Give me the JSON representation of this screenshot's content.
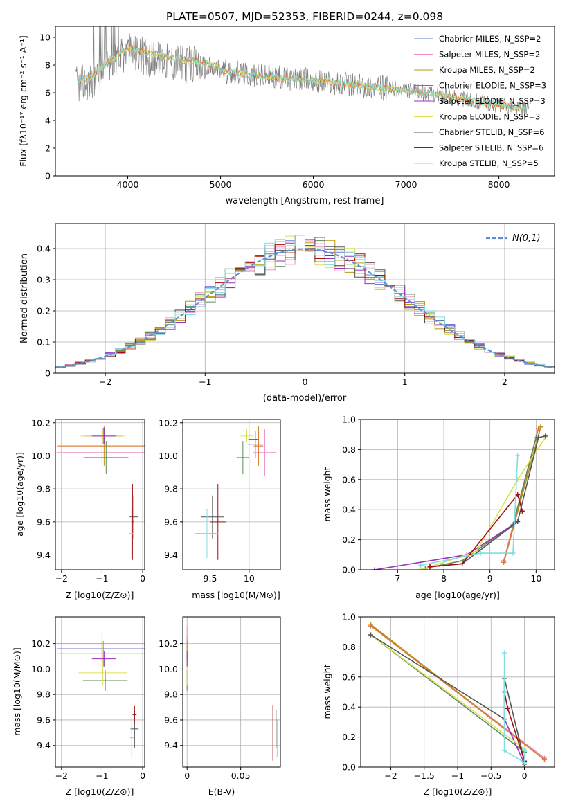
{
  "figure": {
    "title": "PLATE=0507, MJD=52353, FIBERID=0244, z=0.098"
  },
  "colors": {
    "Chabrier MILES": "#6a7bd0",
    "Salpeter MILES": "#ee8fc0",
    "Kroupa MILES": "#b8960e",
    "Chabrier ELODIE": "#5e8a5a",
    "Salpeter ELODIE": "#9a2fc0",
    "Kroupa ELODIE": "#d8e050",
    "Chabrier STELIB": "#545454",
    "Salpeter STELIB": "#a01010",
    "Kroupa STELIB": "#80dde0",
    "orange": "#e07a3a",
    "data": "#7f7f7f",
    "normal_curve": "#5b8fd9"
  },
  "chart_data": [
    {
      "id": "spectrum",
      "type": "line",
      "title": "PLATE=0507, MJD=52353, FIBERID=0244, z=0.098",
      "xlabel": "wavelength [Angstrom, rest frame]",
      "ylabel": "Flux [fλ10⁻¹⁷ erg cm⁻² s⁻¹ A⁻¹]",
      "xlim": [
        3220,
        8600
      ],
      "ylim": [
        0,
        10.8
      ],
      "xticks": [
        4000,
        5000,
        6000,
        7000,
        8000
      ],
      "yticks": [
        0,
        2,
        4,
        6,
        8,
        10
      ],
      "grid": false,
      "legend_position": "top-right",
      "continuum_x": [
        3450,
        3600,
        3800,
        4000,
        4200,
        4400,
        4600,
        4800,
        5000,
        5300,
        5600,
        6000,
        6400,
        6800,
        7200,
        7600,
        8000,
        8300
      ],
      "continuum_y": [
        6.6,
        6.8,
        8.0,
        9.0,
        8.6,
        8.3,
        8.1,
        7.9,
        7.6,
        7.3,
        7.1,
        6.9,
        6.6,
        6.3,
        6.0,
        5.6,
        5.1,
        4.8
      ],
      "legend": [
        {
          "label": "Chabrier MILES, N_SSP=2",
          "key": "Chabrier MILES"
        },
        {
          "label": "Salpeter MILES, N_SSP=2",
          "key": "Salpeter MILES"
        },
        {
          "label": "Kroupa MILES, N_SSP=2",
          "key": "Kroupa MILES"
        },
        {
          "label": "Chabrier ELODIE, N_SSP=3",
          "key": "Chabrier ELODIE"
        },
        {
          "label": "Salpeter ELODIE, N_SSP=3",
          "key": "Salpeter ELODIE"
        },
        {
          "label": "Kroupa ELODIE, N_SSP=3",
          "key": "Kroupa ELODIE"
        },
        {
          "label": "Chabrier STELIB, N_SSP=6",
          "key": "Chabrier STELIB"
        },
        {
          "label": "Salpeter STELIB, N_SSP=6",
          "key": "Salpeter STELIB"
        },
        {
          "label": "Kroupa STELIB, N_SSP=5",
          "key": "Kroupa STELIB"
        }
      ]
    },
    {
      "id": "residuals",
      "type": "line",
      "xlabel": "(data-model)/error",
      "ylabel": "Normed distribution",
      "xlim": [
        -2.5,
        2.5
      ],
      "ylim": [
        0,
        0.48
      ],
      "xticks": [
        -2,
        -1,
        0,
        1,
        2
      ],
      "yticks": [
        0.0,
        0.1,
        0.2,
        0.3,
        0.4
      ],
      "grid": true,
      "legend_position": "top-right",
      "legend_label": "N(0,1)",
      "bin_width": 0.1,
      "series": [
        {
          "key": "Chabrier MILES"
        },
        {
          "key": "Salpeter MILES"
        },
        {
          "key": "Kroupa MILES"
        },
        {
          "key": "Chabrier ELODIE"
        },
        {
          "key": "Salpeter ELODIE"
        },
        {
          "key": "Kroupa ELODIE"
        },
        {
          "key": "Chabrier STELIB"
        },
        {
          "key": "Salpeter STELIB"
        },
        {
          "key": "Kroupa STELIB"
        }
      ]
    },
    {
      "id": "age_vs_Z",
      "type": "scatter",
      "xlabel": "Z [log10(Z/Z⊙)]",
      "ylabel": "age  [log10(age/yr)]",
      "xlim": [
        -2.15,
        0.05
      ],
      "ylim": [
        9.31,
        10.22
      ],
      "xticks": [
        -2,
        -1,
        0
      ],
      "yticks": [
        9.4,
        9.6,
        9.8,
        10.0,
        10.2
      ],
      "grid": true,
      "points": [
        {
          "key": "Chabrier MILES",
          "x": -0.97,
          "y": 10.12,
          "xerr": 0.45,
          "yerr": 0.05
        },
        {
          "key": "Salpeter MILES",
          "x": -1.0,
          "y": 10.02,
          "xerr": 1.1,
          "yerr": 0.15
        },
        {
          "key": "Kroupa MILES",
          "x": -0.95,
          "y": 10.06,
          "xerr": 1.1,
          "yerr": 0.12
        },
        {
          "key": "orange",
          "x": -1.0,
          "y": 10.06,
          "xerr": 1.1,
          "yerr": 0.1
        },
        {
          "key": "Chabrier ELODIE",
          "x": -0.9,
          "y": 9.99,
          "xerr": 0.55,
          "yerr": 0.1
        },
        {
          "key": "Kroupa ELODIE",
          "x": -0.98,
          "y": 10.12,
          "xerr": 0.55,
          "yerr": 0.04
        },
        {
          "key": "Salpeter ELODIE",
          "x": -0.95,
          "y": 10.12,
          "xerr": 0.3,
          "yerr": 0.05
        },
        {
          "key": "Chabrier STELIB",
          "x": -0.22,
          "y": 9.63,
          "xerr": 0.1,
          "yerr": 0.13
        },
        {
          "key": "Salpeter STELIB",
          "x": -0.25,
          "y": 9.6,
          "xerr": 0.03,
          "yerr": 0.23
        },
        {
          "key": "Kroupa STELIB",
          "x": -0.27,
          "y": 9.53,
          "xerr": 0.05,
          "yerr": 0.15
        }
      ]
    },
    {
      "id": "age_vs_mass",
      "type": "scatter",
      "xlabel": "mass [log10(M/M⊙)]",
      "xlim": [
        9.15,
        10.4
      ],
      "ylim": [
        9.31,
        10.22
      ],
      "xticks": [
        9.5,
        10.0
      ],
      "yticks": [
        9.4,
        9.6,
        9.8,
        10.0,
        10.2
      ],
      "grid": true,
      "points": [
        {
          "key": "Chabrier MILES",
          "x": 10.08,
          "y": 10.07,
          "xerr": 0.1,
          "yerr": 0.08
        },
        {
          "key": "Salpeter MILES",
          "x": 10.2,
          "y": 10.02,
          "xerr": 0.15,
          "yerr": 0.14
        },
        {
          "key": "Kroupa MILES",
          "x": 10.12,
          "y": 10.06,
          "xerr": 0.06,
          "yerr": 0.12
        },
        {
          "key": "orange",
          "x": 10.12,
          "y": 10.06,
          "xerr": 0.06,
          "yerr": 0.1
        },
        {
          "key": "Chabrier ELODIE",
          "x": 9.92,
          "y": 9.99,
          "xerr": 0.08,
          "yerr": 0.1
        },
        {
          "key": "Kroupa ELODIE",
          "x": 9.97,
          "y": 10.12,
          "xerr": 0.08,
          "yerr": 0.04
        },
        {
          "key": "Salpeter ELODIE",
          "x": 10.05,
          "y": 10.1,
          "xerr": 0.06,
          "yerr": 0.06
        },
        {
          "key": "Chabrier STELIB",
          "x": 9.53,
          "y": 9.63,
          "xerr": 0.15,
          "yerr": 0.13
        },
        {
          "key": "Salpeter STELIB",
          "x": 9.6,
          "y": 9.6,
          "xerr": 0.1,
          "yerr": 0.23
        },
        {
          "key": "Kroupa STELIB",
          "x": 9.46,
          "y": 9.53,
          "xerr": 0.15,
          "yerr": 0.15
        }
      ]
    },
    {
      "id": "mass_weight_vs_age",
      "type": "line",
      "xlabel": "age  [log10(age/yr)]",
      "ylabel": "mass weight",
      "xlim": [
        6.2,
        10.4
      ],
      "ylim": [
        0,
        1.0
      ],
      "xticks": [
        7,
        8,
        9,
        10
      ],
      "yticks": [
        0.0,
        0.2,
        0.4,
        0.6,
        0.8,
        1.0
      ],
      "grid": true,
      "series": [
        {
          "key": "Chabrier MILES",
          "x": [
            9.3,
            10.1
          ],
          "y": [
            0.05,
            0.95
          ]
        },
        {
          "key": "Salpeter MILES",
          "x": [
            9.3,
            10.05
          ],
          "y": [
            0.06,
            0.94
          ]
        },
        {
          "key": "Kroupa MILES",
          "x": [
            9.3,
            10.1
          ],
          "y": [
            0.05,
            0.95
          ]
        },
        {
          "key": "orange",
          "x": [
            9.3,
            10.05
          ],
          "y": [
            0.05,
            0.94
          ]
        },
        {
          "key": "Chabrier ELODIE",
          "x": [
            7.6,
            8.4,
            9.5,
            10.0
          ],
          "y": [
            0.01,
            0.06,
            0.3,
            0.88
          ]
        },
        {
          "key": "Salpeter ELODIE",
          "x": [
            6.5,
            8.5,
            9.6
          ],
          "y": [
            0.0,
            0.1,
            0.32
          ]
        },
        {
          "key": "Kroupa ELODIE",
          "x": [
            7.5,
            8.7,
            9.6,
            10.2
          ],
          "y": [
            0.0,
            0.12,
            0.6,
            0.88
          ]
        },
        {
          "key": "Chabrier STELIB",
          "x": [
            7.7,
            8.4,
            9.6,
            10.05,
            10.2
          ],
          "y": [
            0.02,
            0.04,
            0.32,
            0.88,
            0.89
          ]
        },
        {
          "key": "Salpeter STELIB",
          "x": [
            7.7,
            8.4,
            9.6,
            9.7
          ],
          "y": [
            0.02,
            0.04,
            0.5,
            0.39
          ]
        },
        {
          "key": "Kroupa STELIB",
          "x": [
            7.5,
            8.8,
            9.5,
            9.6
          ],
          "y": [
            0.03,
            0.11,
            0.11,
            0.76
          ]
        }
      ]
    },
    {
      "id": "mass_vs_Z",
      "type": "scatter",
      "xlabel": "Z [log10(Z/Z⊙)]",
      "ylabel": "mass [log10(M/M⊙)]",
      "xlim": [
        -2.15,
        0.05
      ],
      "ylim": [
        9.23,
        10.41
      ],
      "xticks": [
        -2,
        -1,
        0
      ],
      "yticks": [
        9.4,
        9.6,
        9.8,
        10.0,
        10.2
      ],
      "grid": true,
      "points": [
        {
          "key": "Chabrier MILES",
          "x": -1.0,
          "y": 10.16,
          "xerr": 1.1,
          "yerr": 0.1
        },
        {
          "key": "Salpeter MILES",
          "x": -1.0,
          "y": 10.2,
          "xerr": 1.1,
          "yerr": 0.14
        },
        {
          "key": "Kroupa MILES",
          "x": -0.97,
          "y": 10.12,
          "xerr": 1.1,
          "yerr": 0.1
        },
        {
          "key": "orange",
          "x": -1.0,
          "y": 10.12,
          "xerr": 1.1,
          "yerr": 0.1
        },
        {
          "key": "Chabrier ELODIE",
          "x": -0.92,
          "y": 9.91,
          "xerr": 0.55,
          "yerr": 0.08
        },
        {
          "key": "Kroupa ELODIE",
          "x": -0.98,
          "y": 9.97,
          "xerr": 0.6,
          "yerr": 0.1
        },
        {
          "key": "Salpeter ELODIE",
          "x": -0.95,
          "y": 10.08,
          "xerr": 0.3,
          "yerr": 0.06
        },
        {
          "key": "Chabrier STELIB",
          "x": -0.2,
          "y": 9.53,
          "xerr": 0.1,
          "yerr": 0.15
        },
        {
          "key": "Salpeter STELIB",
          "x": -0.2,
          "y": 9.64,
          "xerr": 0.05,
          "yerr": 0.07
        },
        {
          "key": "Kroupa STELIB",
          "x": -0.27,
          "y": 9.46,
          "xerr": 0.05,
          "yerr": 0.15
        }
      ]
    },
    {
      "id": "mass_vs_ebv",
      "type": "scatter",
      "xlabel": "E(B-V)",
      "xlim": [
        -0.004,
        0.087
      ],
      "ylim": [
        9.23,
        10.41
      ],
      "xticks": [
        0.0,
        0.05
      ],
      "yticks": [
        9.4,
        9.6,
        9.8,
        10.0,
        10.2
      ],
      "grid": true,
      "points": [
        {
          "key": "Chabrier MILES",
          "x": 0.0,
          "y": 10.16,
          "xerr": 0,
          "yerr": 0.1
        },
        {
          "key": "Salpeter MILES",
          "x": 0.0,
          "y": 10.2,
          "xerr": 0,
          "yerr": 0.14
        },
        {
          "key": "Kroupa MILES",
          "x": 0.0,
          "y": 10.12,
          "xerr": 0,
          "yerr": 0.1
        },
        {
          "key": "Chabrier ELODIE",
          "x": 0.0,
          "y": 9.91,
          "xerr": 0,
          "yerr": 0.08
        },
        {
          "key": "Kroupa ELODIE",
          "x": 0.0,
          "y": 9.97,
          "xerr": 0,
          "yerr": 0.1
        },
        {
          "key": "Salpeter ELODIE",
          "x": 0.0,
          "y": 10.08,
          "xerr": 0,
          "yerr": 0.06
        },
        {
          "key": "Chabrier STELIB",
          "x": 0.083,
          "y": 9.53,
          "xerr": 0,
          "yerr": 0.15
        },
        {
          "key": "Salpeter STELIB",
          "x": 0.08,
          "y": 9.5,
          "xerr": 0,
          "yerr": 0.22
        },
        {
          "key": "Kroupa STELIB",
          "x": 0.084,
          "y": 9.46,
          "xerr": 0,
          "yerr": 0.15
        }
      ]
    },
    {
      "id": "mass_weight_vs_Z",
      "type": "line",
      "xlabel": "Z [log10(Z/Z⊙)]",
      "ylabel": "mass weight",
      "xlim": [
        -2.45,
        0.45
      ],
      "ylim": [
        0,
        1.0
      ],
      "xticks": [
        -2.0,
        -1.5,
        -1.0,
        -0.5,
        0.0
      ],
      "yticks": [
        0.0,
        0.2,
        0.4,
        0.6,
        0.8,
        1.0
      ],
      "grid": true,
      "series": [
        {
          "key": "Chabrier MILES",
          "x": [
            -2.3,
            0.3
          ],
          "y": [
            0.95,
            0.05
          ]
        },
        {
          "key": "Salpeter MILES",
          "x": [
            -2.3,
            0.3
          ],
          "y": [
            0.94,
            0.06
          ]
        },
        {
          "key": "Kroupa MILES",
          "x": [
            -2.3,
            0.3
          ],
          "y": [
            0.95,
            0.05
          ]
        },
        {
          "key": "orange",
          "x": [
            -2.3,
            0.3
          ],
          "y": [
            0.94,
            0.05
          ]
        },
        {
          "key": "Chabrier ELODIE",
          "x": [
            -2.3,
            0.0
          ],
          "y": [
            0.88,
            0.1
          ]
        },
        {
          "key": "Salpeter ELODIE",
          "x": [
            -0.3,
            0.0
          ],
          "y": [
            0.32,
            0.02
          ]
        },
        {
          "key": "Kroupa ELODIE",
          "x": [
            -2.3,
            0.0
          ],
          "y": [
            0.88,
            0.12
          ]
        },
        {
          "key": "Chabrier STELIB",
          "x": [
            -2.3,
            -0.3,
            -0.3,
            0.0,
            0.0
          ],
          "y": [
            0.88,
            0.32,
            0.59,
            0.04,
            0.02
          ]
        },
        {
          "key": "Salpeter STELIB",
          "x": [
            -0.3,
            -0.25,
            0.0,
            0.0
          ],
          "y": [
            0.5,
            0.39,
            0.04,
            0.02
          ]
        },
        {
          "key": "Kroupa STELIB",
          "x": [
            -0.3,
            -0.3,
            0.0,
            0.0
          ],
          "y": [
            0.76,
            0.11,
            0.03,
            0.11
          ]
        }
      ]
    }
  ]
}
